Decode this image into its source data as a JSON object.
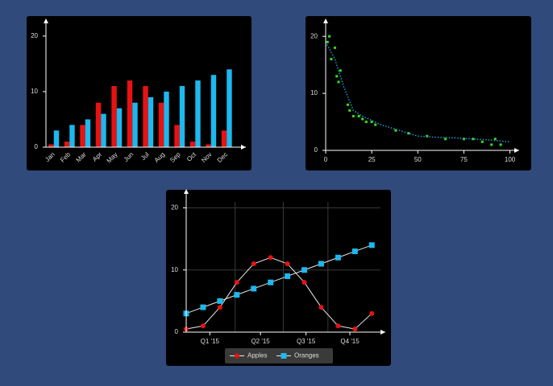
{
  "chart_data": [
    {
      "type": "bar",
      "categories": [
        "Jan",
        "Feb",
        "Mar",
        "Apr",
        "May",
        "Jun",
        "Jul",
        "Aug",
        "Sep",
        "Oct",
        "Nov",
        "Dec"
      ],
      "series": [
        {
          "color": "#e81212",
          "values": [
            0.5,
            1,
            4,
            8,
            11,
            12,
            11,
            8,
            4,
            1,
            0.5,
            3
          ]
        },
        {
          "color": "#1cb8ee",
          "values": [
            3,
            4,
            5,
            6,
            7,
            8,
            9,
            10,
            11,
            12,
            13,
            14
          ]
        }
      ],
      "ylim": [
        0,
        22
      ],
      "yticks": [
        0,
        10,
        20
      ]
    },
    {
      "type": "scatter",
      "series": [
        {
          "color": "#33dd22",
          "style": "markers",
          "x": [
            1,
            2,
            3,
            5,
            6,
            7,
            8,
            12,
            13,
            15,
            18,
            20,
            22,
            25,
            27,
            38,
            45,
            55,
            65,
            75,
            80,
            85,
            90,
            92,
            95
          ],
          "values": [
            19,
            20,
            16,
            18,
            13,
            12,
            14,
            8,
            7,
            6,
            6,
            5.5,
            5,
            5,
            4.5,
            3.5,
            3,
            2.5,
            2,
            2,
            2,
            1.5,
            1,
            2,
            1
          ]
        },
        {
          "color": "#1a9fc8",
          "style": "dotted",
          "x": [
            0,
            5,
            10,
            15,
            20,
            30,
            40,
            50,
            60,
            70,
            80,
            90,
            100
          ],
          "values": [
            19,
            16,
            11,
            7,
            6,
            4.5,
            3.5,
            2.5,
            2.3,
            2.2,
            2,
            1.8,
            1.5
          ]
        }
      ],
      "xlim": [
        0,
        105
      ],
      "xticks": [
        0,
        25,
        50,
        75,
        100
      ],
      "ylim": [
        0,
        22
      ],
      "yticks": [
        0,
        10,
        20
      ]
    },
    {
      "type": "line",
      "x": [
        0,
        1,
        2,
        3,
        4,
        5,
        6,
        7,
        8,
        9,
        10,
        11
      ],
      "series": [
        {
          "name": "Apples",
          "color": "#e81212",
          "line_color": "#e8e8e8",
          "marker": "circle",
          "values": [
            0.5,
            1,
            4,
            8,
            11,
            12,
            11,
            8,
            4,
            1,
            0.5,
            3
          ]
        },
        {
          "name": "Oranges",
          "color": "#1cb8ee",
          "line_color": "#e8e8e8",
          "marker": "square",
          "values": [
            3,
            4,
            5,
            6,
            7,
            8,
            9,
            10,
            11,
            12,
            13,
            14
          ]
        }
      ],
      "xlim": [
        0,
        11.8
      ],
      "xticks": [
        {
          "value": 1.4,
          "label": "Q1 '15"
        },
        {
          "value": 4.4,
          "label": "Q2 '15"
        },
        {
          "value": 7.1,
          "label": "Q3 '15"
        },
        {
          "value": 9.7,
          "label": "Q4 '15"
        }
      ],
      "ylim": [
        0,
        22
      ],
      "yticks": [
        0,
        10,
        20
      ],
      "grid": true,
      "legend": "bottom"
    }
  ]
}
